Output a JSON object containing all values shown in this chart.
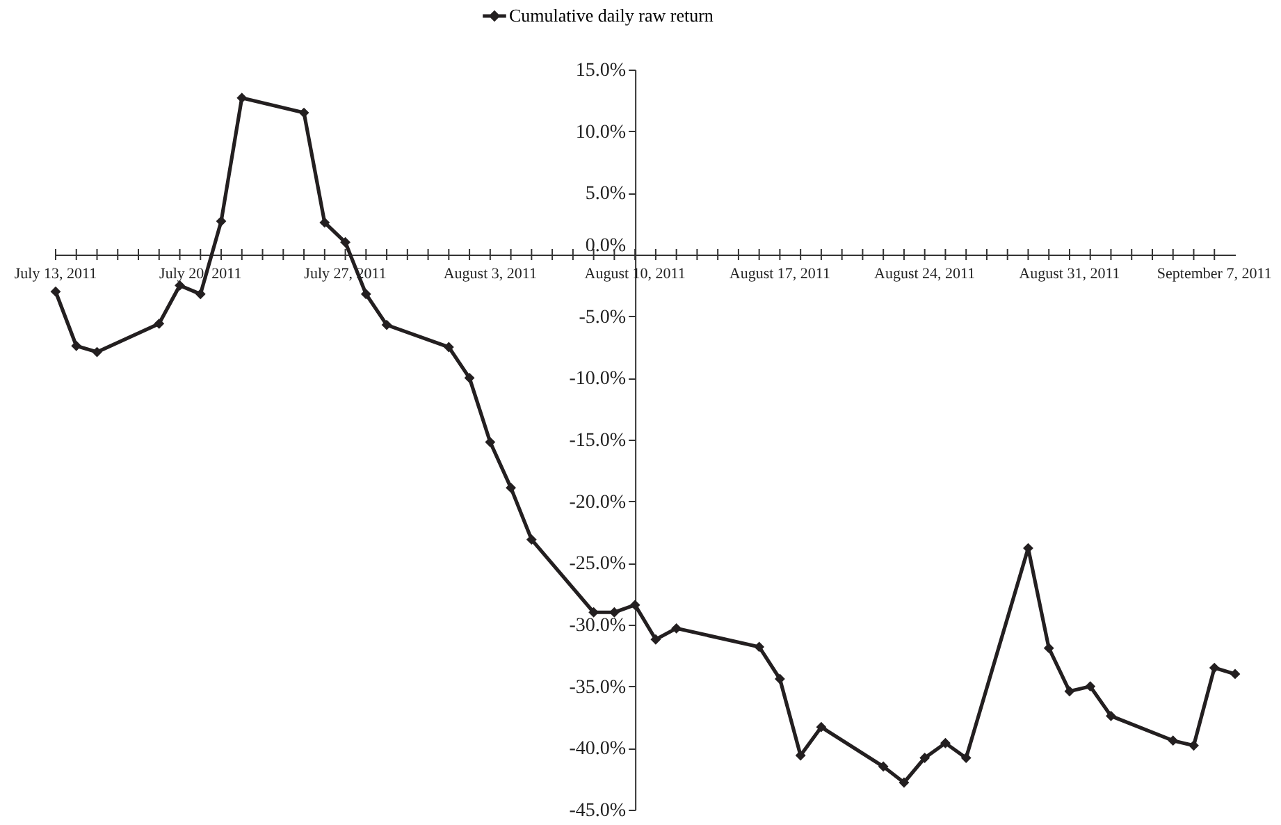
{
  "chart_data": {
    "type": "line",
    "legend": "top",
    "grid": false,
    "marker": "diamond",
    "line_style": "solid",
    "x": [
      "2011-07-13",
      "2011-07-14",
      "2011-07-15",
      "2011-07-18",
      "2011-07-19",
      "2011-07-20",
      "2011-07-21",
      "2011-07-22",
      "2011-07-25",
      "2011-07-26",
      "2011-07-27",
      "2011-07-28",
      "2011-07-29",
      "2011-08-01",
      "2011-08-02",
      "2011-08-03",
      "2011-08-04",
      "2011-08-05",
      "2011-08-08",
      "2011-08-09",
      "2011-08-10",
      "2011-08-11",
      "2011-08-12",
      "2011-08-16",
      "2011-08-17",
      "2011-08-18",
      "2011-08-19",
      "2011-08-22",
      "2011-08-23",
      "2011-08-24",
      "2011-08-25",
      "2011-08-26",
      "2011-08-29",
      "2011-08-30",
      "2011-08-31",
      "2011-09-01",
      "2011-09-02",
      "2011-09-05",
      "2011-09-06",
      "2011-09-07",
      "2011-09-08"
    ],
    "series": [
      {
        "name": "Cumulative daily raw return",
        "color": "#231f20",
        "values": [
          -3.0,
          -7.4,
          -7.9,
          -5.6,
          -2.5,
          -3.2,
          2.7,
          12.7,
          11.5,
          2.6,
          1.0,
          -3.2,
          -5.7,
          -7.5,
          -10.0,
          -15.2,
          -18.9,
          -23.1,
          -29.0,
          -29.0,
          -28.4,
          -31.2,
          -30.3,
          -31.8,
          -34.4,
          -40.6,
          -38.3,
          -41.5,
          -42.8,
          -40.8,
          -39.6,
          -40.8,
          -23.8,
          -31.9,
          -35.4,
          -35.0,
          -37.4,
          -39.4,
          -39.8,
          -33.5,
          -34.0
        ]
      }
    ],
    "xlim": [
      "2011-07-13",
      "2011-09-08"
    ],
    "xticks": [
      {
        "value": "2011-07-13",
        "label": "July 13, 2011"
      },
      {
        "value": "2011-07-14",
        "label": null
      },
      {
        "value": "2011-07-15",
        "label": null
      },
      {
        "value": "2011-07-16",
        "label": null
      },
      {
        "value": "2011-07-17",
        "label": null
      },
      {
        "value": "2011-07-18",
        "label": null
      },
      {
        "value": "2011-07-19",
        "label": null
      },
      {
        "value": "2011-07-20",
        "label": "July 20, 2011"
      },
      {
        "value": "2011-07-21",
        "label": null
      },
      {
        "value": "2011-07-22",
        "label": null
      },
      {
        "value": "2011-07-23",
        "label": null
      },
      {
        "value": "2011-07-24",
        "label": null
      },
      {
        "value": "2011-07-25",
        "label": null
      },
      {
        "value": "2011-07-26",
        "label": null
      },
      {
        "value": "2011-07-27",
        "label": "July 27, 2011"
      },
      {
        "value": "2011-07-28",
        "label": null
      },
      {
        "value": "2011-07-29",
        "label": null
      },
      {
        "value": "2011-07-30",
        "label": null
      },
      {
        "value": "2011-07-31",
        "label": null
      },
      {
        "value": "2011-08-01",
        "label": null
      },
      {
        "value": "2011-08-02",
        "label": null
      },
      {
        "value": "2011-08-03",
        "label": "August 3, 2011"
      },
      {
        "value": "2011-08-04",
        "label": null
      },
      {
        "value": "2011-08-05",
        "label": null
      },
      {
        "value": "2011-08-06",
        "label": null
      },
      {
        "value": "2011-08-07",
        "label": null
      },
      {
        "value": "2011-08-08",
        "label": null
      },
      {
        "value": "2011-08-09",
        "label": null
      },
      {
        "value": "2011-08-10",
        "label": "August 10, 2011"
      },
      {
        "value": "2011-08-11",
        "label": null
      },
      {
        "value": "2011-08-12",
        "label": null
      },
      {
        "value": "2011-08-13",
        "label": null
      },
      {
        "value": "2011-08-14",
        "label": null
      },
      {
        "value": "2011-08-15",
        "label": null
      },
      {
        "value": "2011-08-16",
        "label": null
      },
      {
        "value": "2011-08-17",
        "label": "August 17, 2011"
      },
      {
        "value": "2011-08-18",
        "label": null
      },
      {
        "value": "2011-08-19",
        "label": null
      },
      {
        "value": "2011-08-20",
        "label": null
      },
      {
        "value": "2011-08-21",
        "label": null
      },
      {
        "value": "2011-08-22",
        "label": null
      },
      {
        "value": "2011-08-23",
        "label": null
      },
      {
        "value": "2011-08-24",
        "label": "August 24, 2011"
      },
      {
        "value": "2011-08-25",
        "label": null
      },
      {
        "value": "2011-08-26",
        "label": null
      },
      {
        "value": "2011-08-27",
        "label": null
      },
      {
        "value": "2011-08-28",
        "label": null
      },
      {
        "value": "2011-08-29",
        "label": null
      },
      {
        "value": "2011-08-30",
        "label": null
      },
      {
        "value": "2011-08-31",
        "label": "August 31, 2011"
      },
      {
        "value": "2011-09-01",
        "label": null
      },
      {
        "value": "2011-09-02",
        "label": null
      },
      {
        "value": "2011-09-03",
        "label": null
      },
      {
        "value": "2011-09-04",
        "label": null
      },
      {
        "value": "2011-09-05",
        "label": null
      },
      {
        "value": "2011-09-06",
        "label": null
      },
      {
        "value": "2011-09-07",
        "label": "September 7, 2011"
      }
    ],
    "ylim": [
      -45,
      15
    ],
    "yticks": [
      {
        "value": 15,
        "label": "15.0%"
      },
      {
        "value": 10,
        "label": "10.0%"
      },
      {
        "value": 5,
        "label": "5.0%"
      },
      {
        "value": 0,
        "label": "0.0%"
      },
      {
        "value": -5,
        "label": "-5.0%"
      },
      {
        "value": -10,
        "label": "-10.0%"
      },
      {
        "value": -15,
        "label": "-15.0%"
      },
      {
        "value": -20,
        "label": "-20.0%"
      },
      {
        "value": -25,
        "label": "-25.0%"
      },
      {
        "value": -30,
        "label": "-30.0%"
      },
      {
        "value": -35,
        "label": "-35.0%"
      },
      {
        "value": -40,
        "label": "-40.0%"
      },
      {
        "value": -45,
        "label": "-45.0%"
      }
    ]
  }
}
